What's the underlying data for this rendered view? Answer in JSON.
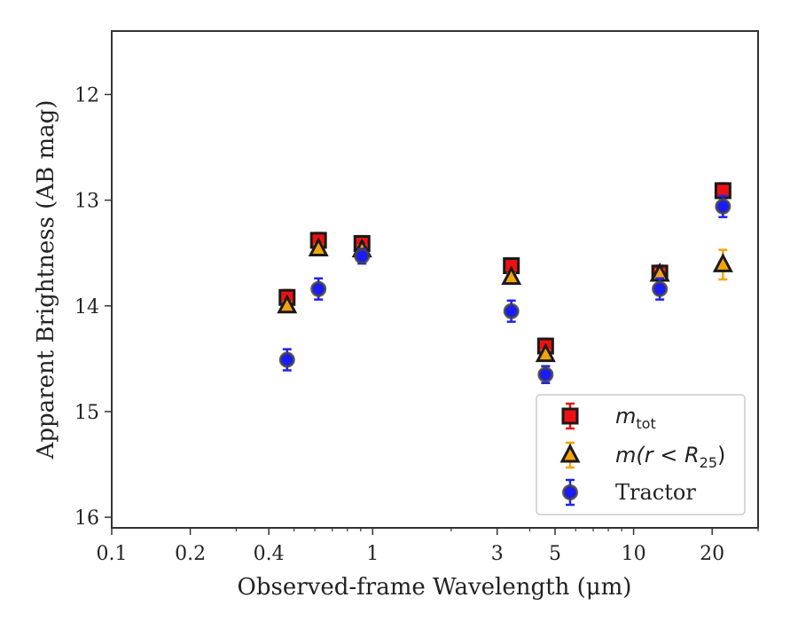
{
  "chart_data": {
    "type": "scatter",
    "xscale": "log",
    "yinverted": true,
    "xlabel": "Observed-frame Wavelength (μm)",
    "ylabel": "Apparent Brightness (AB mag)",
    "xlim": [
      0.1,
      30
    ],
    "ylim": [
      16.1,
      11.4
    ],
    "xticks": [
      {
        "v": 0.1,
        "label": "0.1"
      },
      {
        "v": 0.2,
        "label": "0.2"
      },
      {
        "v": 0.4,
        "label": "0.4"
      },
      {
        "v": 1,
        "label": "1"
      },
      {
        "v": 3,
        "label": "3"
      },
      {
        "v": 5,
        "label": "5"
      },
      {
        "v": 10,
        "label": "10"
      },
      {
        "v": 20,
        "label": "20"
      }
    ],
    "yticks": [
      {
        "v": 12,
        "label": "12"
      },
      {
        "v": 13,
        "label": "13"
      },
      {
        "v": 14,
        "label": "14"
      },
      {
        "v": 15,
        "label": "15"
      },
      {
        "v": 16,
        "label": "16"
      }
    ],
    "legend": {
      "position": "lower-right",
      "entries": [
        {
          "main": "m",
          "sub": "tot",
          "tail": ""
        },
        {
          "main": "m(r < R",
          "sub": "25",
          "tail": ")"
        },
        {
          "main": "Tractor",
          "sub": "",
          "tail": ""
        }
      ]
    },
    "series": [
      {
        "name": "m_tot",
        "marker": "square",
        "fill": "#ee1111",
        "errcolor": "#ee1111",
        "points": [
          {
            "x": 0.47,
            "y": 13.92,
            "err": 0.07
          },
          {
            "x": 0.62,
            "y": 13.38,
            "err": 0.07
          },
          {
            "x": 0.91,
            "y": 13.41,
            "err": 0.07
          },
          {
            "x": 3.4,
            "y": 13.62,
            "err": 0.07
          },
          {
            "x": 4.6,
            "y": 14.38,
            "err": 0.07
          },
          {
            "x": 12.6,
            "y": 13.69,
            "err": 0.07
          },
          {
            "x": 22.0,
            "y": 12.91,
            "err": 0.07
          }
        ]
      },
      {
        "name": "m(r<R25)",
        "marker": "triangle",
        "fill": "#f5a30a",
        "errcolor": "#f5a30a",
        "points": [
          {
            "x": 0.47,
            "y": 14.0,
            "err": 0.04
          },
          {
            "x": 0.62,
            "y": 13.46,
            "err": 0.04
          },
          {
            "x": 0.91,
            "y": 13.47,
            "err": 0.04
          },
          {
            "x": 3.4,
            "y": 13.73,
            "err": 0.04
          },
          {
            "x": 4.6,
            "y": 14.46,
            "err": 0.04
          },
          {
            "x": 12.6,
            "y": 13.7,
            "err": 0.04
          },
          {
            "x": 22.0,
            "y": 13.61,
            "err": 0.14
          }
        ]
      },
      {
        "name": "Tractor",
        "marker": "circle",
        "fill": "#1a1aff",
        "errcolor": "#2222ee",
        "points": [
          {
            "x": 0.47,
            "y": 14.51,
            "err": 0.1
          },
          {
            "x": 0.62,
            "y": 13.84,
            "err": 0.1
          },
          {
            "x": 0.91,
            "y": 13.53,
            "err": 0.07
          },
          {
            "x": 3.4,
            "y": 14.05,
            "err": 0.1
          },
          {
            "x": 4.6,
            "y": 14.65,
            "err": 0.08
          },
          {
            "x": 12.6,
            "y": 13.84,
            "err": 0.1
          },
          {
            "x": 22.0,
            "y": 13.06,
            "err": 0.1
          }
        ]
      }
    ]
  }
}
